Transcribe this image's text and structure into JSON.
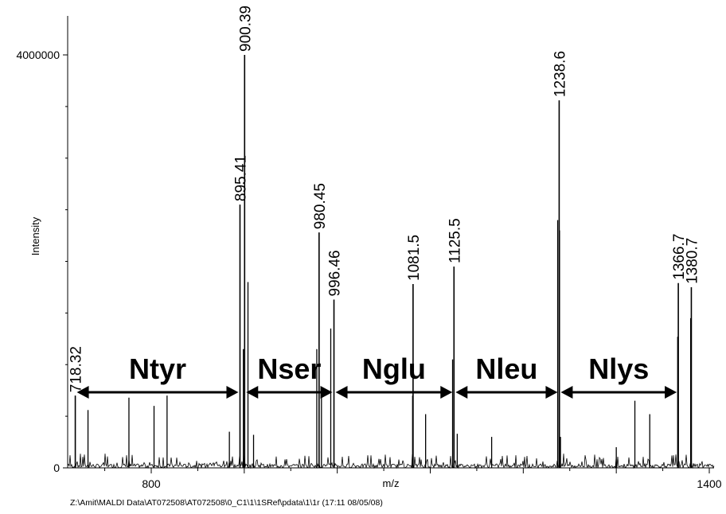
{
  "chart_data": {
    "type": "line",
    "title": "",
    "xlabel": "m/z",
    "ylabel": "Intensity",
    "xlim": [
      715,
      1400
    ],
    "ylim": [
      0,
      4000000
    ],
    "x_ticks": [
      800,
      1400
    ],
    "y_ticks": [
      0,
      4000000
    ],
    "grid": false,
    "peaks": [
      {
        "x": 718.32,
        "y": 700000,
        "label": "718.32"
      },
      {
        "x": 895.41,
        "y": 2550000,
        "label": "895.41"
      },
      {
        "x": 900.39,
        "y": 4000000,
        "label": "900.39"
      },
      {
        "x": 980.45,
        "y": 2280000,
        "label": "980.45"
      },
      {
        "x": 996.46,
        "y": 1630000,
        "label": "996.46"
      },
      {
        "x": 1081.5,
        "y": 1780000,
        "label": "1081.5"
      },
      {
        "x": 1125.5,
        "y": 1950000,
        "label": "1125.5"
      },
      {
        "x": 1238.6,
        "y": 3560000,
        "label": "1238.6"
      },
      {
        "x": 1366.7,
        "y": 1790000,
        "label": "1366.7"
      },
      {
        "x": 1380.7,
        "y": 1750000,
        "label": "1380.7"
      }
    ],
    "minor_peaks": [
      {
        "x": 732,
        "y": 560000
      },
      {
        "x": 776,
        "y": 680000
      },
      {
        "x": 803,
        "y": 600000
      },
      {
        "x": 817,
        "y": 700000
      },
      {
        "x": 884,
        "y": 350000
      },
      {
        "x": 899,
        "y": 1150000
      },
      {
        "x": 904,
        "y": 1800000
      },
      {
        "x": 910,
        "y": 320000
      },
      {
        "x": 978,
        "y": 1150000
      },
      {
        "x": 983,
        "y": 700000
      },
      {
        "x": 993,
        "y": 1350000
      },
      {
        "x": 1081,
        "y": 700000
      },
      {
        "x": 1095,
        "y": 520000
      },
      {
        "x": 1124,
        "y": 1050000
      },
      {
        "x": 1129,
        "y": 330000
      },
      {
        "x": 1166,
        "y": 300000
      },
      {
        "x": 1237,
        "y": 2400000
      },
      {
        "x": 1239,
        "y": 2300000
      },
      {
        "x": 1320,
        "y": 650000
      },
      {
        "x": 1336,
        "y": 520000
      },
      {
        "x": 1366,
        "y": 1270000
      },
      {
        "x": 1380,
        "y": 1450000
      },
      {
        "x": 1240,
        "y": 300000
      },
      {
        "x": 1300,
        "y": 200000
      }
    ],
    "regions": [
      {
        "label": "Ntyr",
        "from": 718.32,
        "to": 895.41
      },
      {
        "label": "Nser",
        "from": 900.39,
        "to": 996.46
      },
      {
        "label": "Nglu",
        "from": 996.46,
        "to": 1125.5
      },
      {
        "label": "Nleu",
        "from": 1125.5,
        "to": 1238.6
      },
      {
        "label": "Nlys",
        "from": 1238.6,
        "to": 1366.7
      }
    ],
    "footer": "Z:\\Amit\\MALDI Data\\AT072508\\AT072508\\0_C1\\1\\1SRef\\pdata\\1\\1r  (17:11 08/05/08)"
  }
}
